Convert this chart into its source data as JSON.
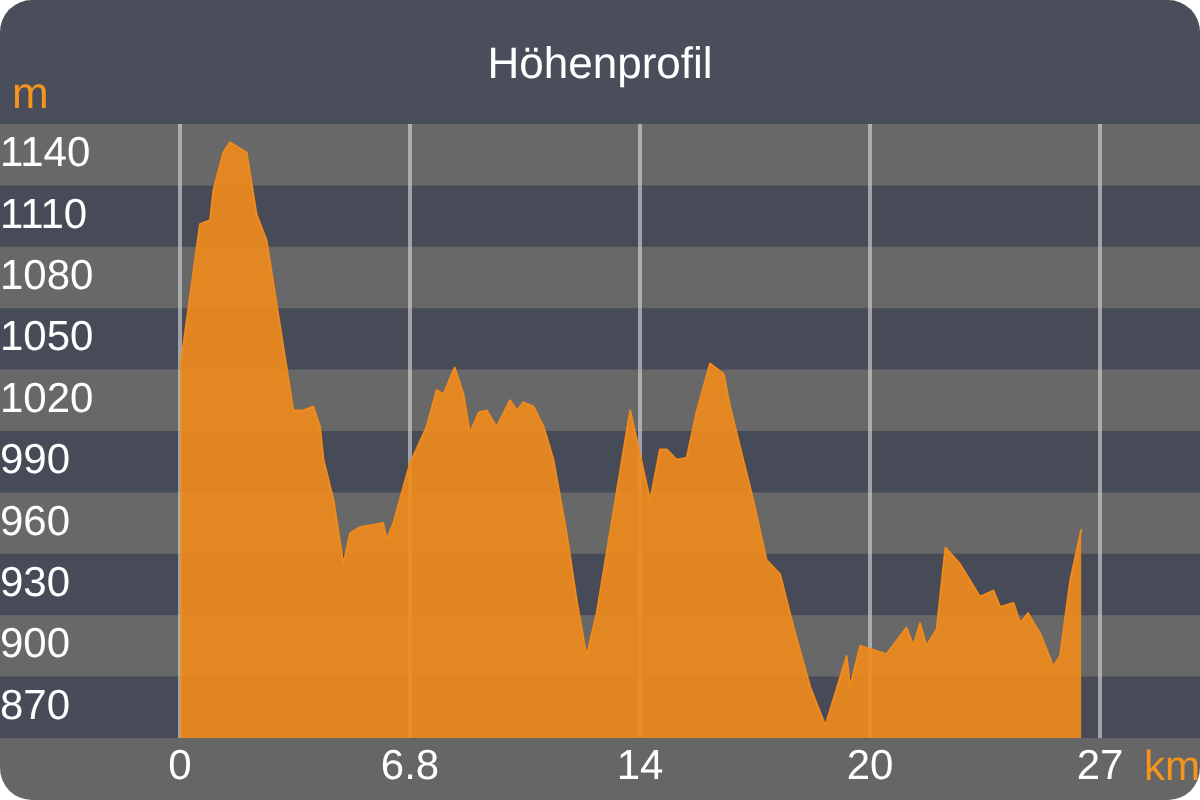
{
  "chart_data": {
    "type": "area",
    "title": "Höhenprofil",
    "xlabel": "km",
    "ylabel": "m",
    "x": [
      0,
      0.59,
      0.89,
      0.99,
      1.28,
      1.48,
      1.97,
      2.26,
      2.56,
      3.35,
      3.65,
      3.94,
      4.14,
      4.24,
      4.54,
      4.83,
      5.03,
      5.32,
      6.01,
      6.11,
      6.31,
      6.61,
      6.8,
      7.29,
      7.59,
      7.79,
      8.12,
      8.38,
      8.57,
      8.83,
      9.07,
      9.36,
      9.76,
      9.96,
      10.15,
      10.45,
      10.75,
      11.04,
      11.43,
      11.73,
      12.02,
      12.32,
      12.61,
      13.31,
      13.9,
      14.19,
      14.39,
      14.68,
      14.98,
      15.27,
      15.67,
      16.07,
      16.26,
      16.95,
      17.34,
      17.74,
      18.14,
      18.63,
      19.08,
      19.71,
      19.81,
      20.11,
      20.5,
      20.89,
      21.48,
      21.68,
      21.88,
      22.07,
      22.37,
      22.63,
      23.06,
      23.65,
      24.05,
      24.25,
      24.64,
      24.84,
      25.07,
      25.43,
      25.82,
      26.02,
      26.32,
      26.65
    ],
    "series": [
      {
        "color": "#f08a1c",
        "values": [
          1035,
          1106,
          1108,
          1123,
          1141,
          1146,
          1141,
          1111,
          1098,
          1015,
          1015,
          1017,
          1007,
          991,
          971,
          940,
          955,
          958,
          960,
          952,
          960,
          978,
          989,
          1007,
          1025,
          1023,
          1036,
          1023,
          1004,
          1014,
          1015,
          1007,
          1020,
          1015,
          1019,
          1017,
          1007,
          991,
          955,
          922,
          895,
          916,
          945,
          1015,
          971,
          996,
          996,
          991,
          992,
          1014,
          1038,
          1033,
          1017,
          971,
          942,
          935,
          909,
          880,
          861,
          895,
          880,
          900,
          898,
          896,
          909,
          900,
          911,
          900,
          908,
          948,
          940,
          924,
          927,
          919,
          921,
          911,
          916,
          906,
          890,
          895,
          932,
          957
        ]
      }
    ],
    "xlim": [
      0,
      27.2
    ],
    "xticks": [
      0,
      6.8,
      {
        "value": 13.6,
        "label": "14"
      },
      {
        "value": 20.4,
        "label": "20"
      },
      {
        "value": 27.2,
        "label": "27"
      }
    ],
    "ylim": [
      855,
      1155
    ],
    "yticks": [
      870,
      900,
      930,
      960,
      990,
      1020,
      1050,
      1080,
      1110,
      1140
    ],
    "bands": [
      {
        "axis": "y",
        "from": 885,
        "to": 915,
        "color": "#686868"
      },
      {
        "axis": "y",
        "from": 945,
        "to": 975,
        "color": "#686868"
      },
      {
        "axis": "y",
        "from": 1005,
        "to": 1035,
        "color": "#686868"
      },
      {
        "axis": "y",
        "from": 1065,
        "to": 1095,
        "color": "#686868"
      },
      {
        "axis": "y",
        "from": 1125,
        "to": 1155,
        "color": "#686868"
      }
    ],
    "grid": "x",
    "legend": false
  }
}
